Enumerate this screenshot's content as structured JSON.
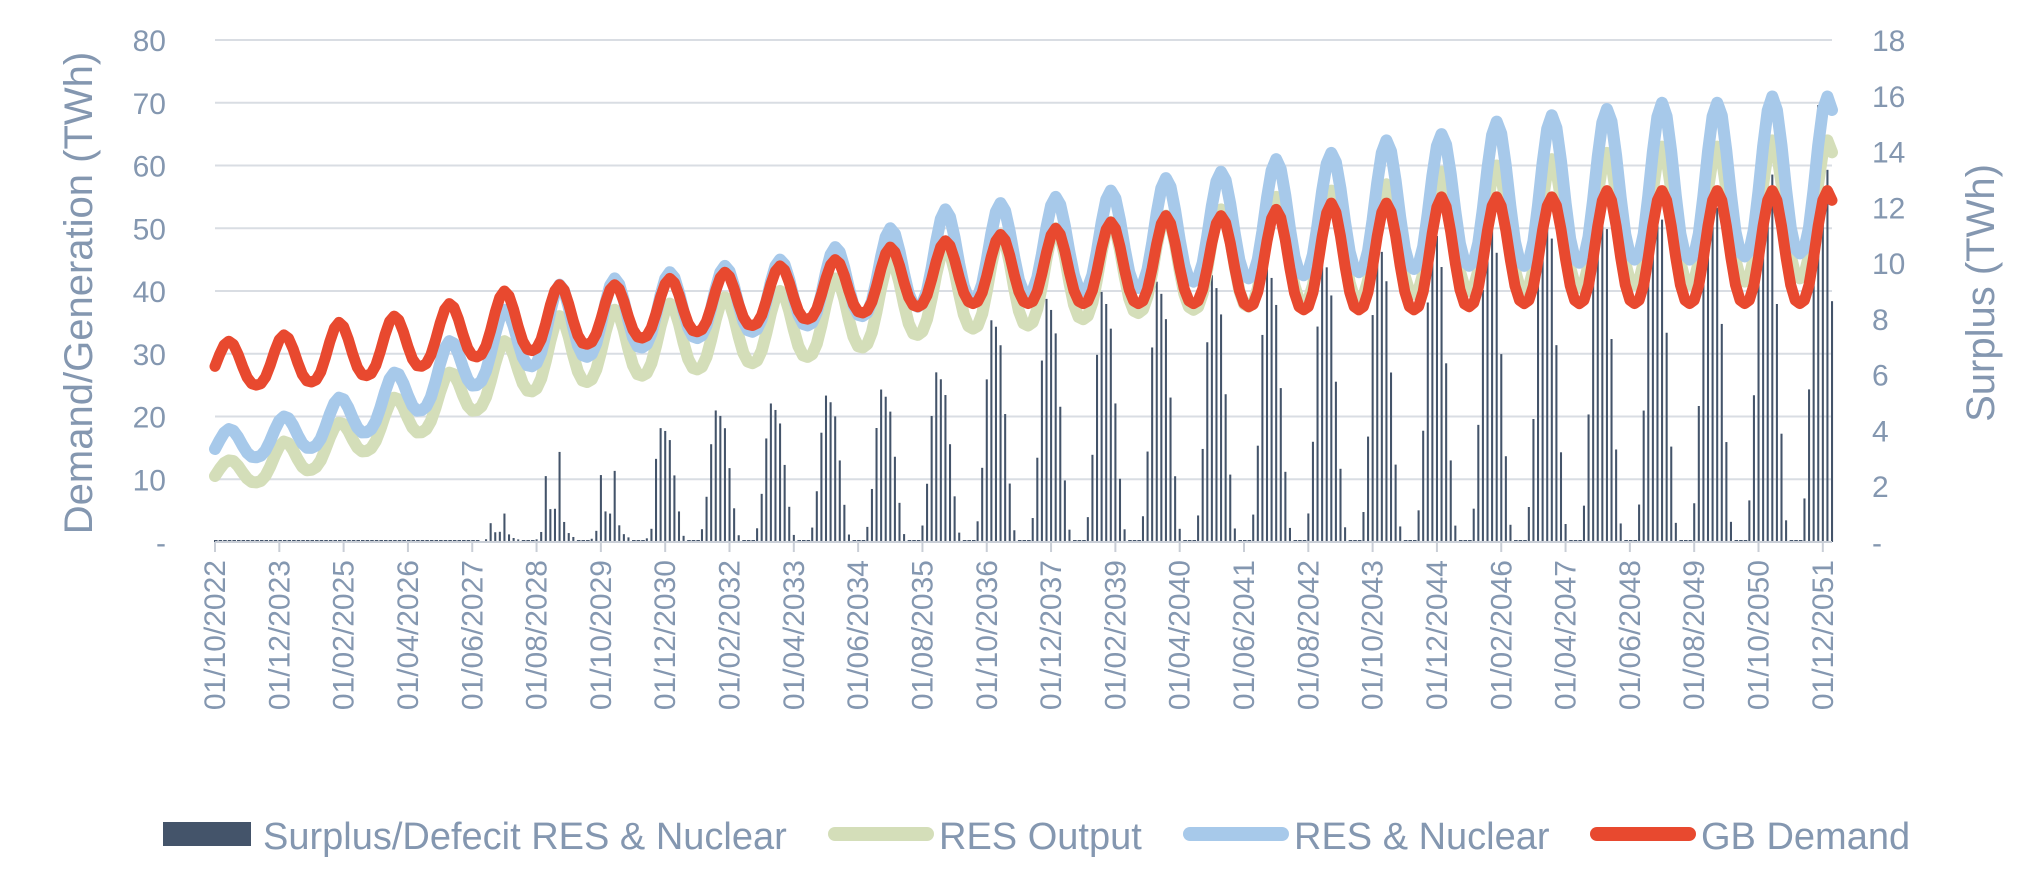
{
  "chart_data": {
    "type": "line",
    "title": "",
    "y_left": {
      "label": "Demand/Generation (TWh)",
      "range": [
        0,
        80
      ],
      "ticks": [
        "-",
        "10",
        "20",
        "30",
        "40",
        "50",
        "60",
        "70",
        "80"
      ]
    },
    "y_right": {
      "label": "Surplus (TWh)",
      "range": [
        0,
        18
      ],
      "ticks": [
        "-",
        "2",
        "4",
        "6",
        "8",
        "10",
        "12",
        "14",
        "16",
        "18"
      ]
    },
    "x_tick_labels": [
      "01/10/2022",
      "01/12/2023",
      "01/02/2025",
      "01/04/2026",
      "01/06/2027",
      "01/08/2028",
      "01/10/2029",
      "01/12/2030",
      "01/02/2032",
      "01/04/2033",
      "01/06/2034",
      "01/08/2035",
      "01/10/2036",
      "01/12/2037",
      "01/02/2039",
      "01/04/2040",
      "01/06/2041",
      "01/08/2042",
      "01/10/2043",
      "01/12/2044",
      "01/02/2046",
      "01/04/2047",
      "01/06/2048",
      "01/08/2049",
      "01/10/2050",
      "01/12/2051"
    ],
    "x_range": [
      "2022-10",
      "2052-02"
    ],
    "grid": true,
    "legend_position": "bottom",
    "series": [
      {
        "name": "GB Demand",
        "axis": "left",
        "style": "line",
        "color": "#e8492f",
        "winter_peak_by_year": [
          [
            2022,
            32
          ],
          [
            2023,
            32
          ],
          [
            2024,
            33
          ],
          [
            2025,
            35
          ],
          [
            2026,
            36
          ],
          [
            2027,
            38
          ],
          [
            2028,
            40
          ],
          [
            2029,
            41
          ],
          [
            2030,
            41
          ],
          [
            2031,
            42
          ],
          [
            2032,
            43
          ],
          [
            2033,
            44
          ],
          [
            2034,
            45
          ],
          [
            2035,
            47
          ],
          [
            2036,
            48
          ],
          [
            2037,
            49
          ],
          [
            2038,
            50
          ],
          [
            2039,
            51
          ],
          [
            2040,
            52
          ],
          [
            2041,
            52
          ],
          [
            2042,
            53
          ],
          [
            2043,
            54
          ],
          [
            2044,
            54
          ],
          [
            2045,
            55
          ],
          [
            2046,
            55
          ],
          [
            2047,
            55
          ],
          [
            2048,
            56
          ],
          [
            2049,
            56
          ],
          [
            2050,
            56
          ],
          [
            2051,
            56
          ],
          [
            2052,
            56
          ]
        ],
        "summer_trough_by_year": [
          [
            2022,
            26
          ],
          [
            2023,
            25
          ],
          [
            2024,
            25
          ],
          [
            2025,
            26
          ],
          [
            2026,
            27
          ],
          [
            2027,
            29
          ],
          [
            2028,
            30
          ],
          [
            2029,
            31
          ],
          [
            2030,
            32
          ],
          [
            2031,
            33
          ],
          [
            2032,
            34
          ],
          [
            2033,
            35
          ],
          [
            2034,
            36
          ],
          [
            2035,
            37
          ],
          [
            2036,
            38
          ],
          [
            2037,
            38
          ],
          [
            2038,
            38
          ],
          [
            2039,
            38
          ],
          [
            2040,
            38
          ],
          [
            2041,
            38
          ],
          [
            2042,
            37
          ],
          [
            2043,
            37
          ],
          [
            2044,
            37
          ],
          [
            2045,
            37
          ],
          [
            2046,
            38
          ],
          [
            2047,
            38
          ],
          [
            2048,
            38
          ],
          [
            2049,
            38
          ],
          [
            2050,
            38
          ],
          [
            2051,
            38
          ],
          [
            2052,
            38
          ]
        ]
      },
      {
        "name": "RES & Nuclear",
        "axis": "left",
        "style": "line",
        "color": "#a7c9ea",
        "winter_peak_by_year": [
          [
            2022,
            16
          ],
          [
            2023,
            18
          ],
          [
            2024,
            20
          ],
          [
            2025,
            23
          ],
          [
            2026,
            27
          ],
          [
            2027,
            32
          ],
          [
            2028,
            37
          ],
          [
            2029,
            41
          ],
          [
            2030,
            42
          ],
          [
            2031,
            43
          ],
          [
            2032,
            44
          ],
          [
            2033,
            45
          ],
          [
            2034,
            47
          ],
          [
            2035,
            50
          ],
          [
            2036,
            53
          ],
          [
            2037,
            54
          ],
          [
            2038,
            55
          ],
          [
            2039,
            56
          ],
          [
            2040,
            58
          ],
          [
            2041,
            59
          ],
          [
            2042,
            61
          ],
          [
            2043,
            62
          ],
          [
            2044,
            64
          ],
          [
            2045,
            65
          ],
          [
            2046,
            67
          ],
          [
            2047,
            68
          ],
          [
            2048,
            69
          ],
          [
            2049,
            70
          ],
          [
            2050,
            70
          ],
          [
            2051,
            71
          ],
          [
            2052,
            71
          ]
        ],
        "summer_trough_by_year": [
          [
            2022,
            13
          ],
          [
            2023,
            13
          ],
          [
            2024,
            14
          ],
          [
            2025,
            16
          ],
          [
            2026,
            19
          ],
          [
            2027,
            23
          ],
          [
            2028,
            27
          ],
          [
            2029,
            29
          ],
          [
            2030,
            30
          ],
          [
            2031,
            32
          ],
          [
            2032,
            33
          ],
          [
            2033,
            34
          ],
          [
            2034,
            35
          ],
          [
            2035,
            37
          ],
          [
            2036,
            38
          ],
          [
            2037,
            39
          ],
          [
            2038,
            40
          ],
          [
            2039,
            40
          ],
          [
            2040,
            41
          ],
          [
            2041,
            42
          ],
          [
            2042,
            42
          ],
          [
            2043,
            43
          ],
          [
            2044,
            43
          ],
          [
            2045,
            44
          ],
          [
            2046,
            44
          ],
          [
            2047,
            44
          ],
          [
            2048,
            45
          ],
          [
            2049,
            45
          ],
          [
            2050,
            45
          ],
          [
            2051,
            46
          ],
          [
            2052,
            46
          ]
        ]
      },
      {
        "name": "RES Output",
        "axis": "left",
        "style": "line",
        "color": "#d4deb9",
        "winter_peak_by_year": [
          [
            2022,
            12
          ],
          [
            2023,
            13
          ],
          [
            2024,
            16
          ],
          [
            2025,
            19
          ],
          [
            2026,
            23
          ],
          [
            2027,
            27
          ],
          [
            2028,
            32
          ],
          [
            2029,
            36
          ],
          [
            2030,
            37
          ],
          [
            2031,
            38
          ],
          [
            2032,
            39
          ],
          [
            2033,
            40
          ],
          [
            2034,
            42
          ],
          [
            2035,
            45
          ],
          [
            2036,
            47
          ],
          [
            2037,
            49
          ],
          [
            2038,
            50
          ],
          [
            2039,
            51
          ],
          [
            2040,
            52
          ],
          [
            2041,
            53
          ],
          [
            2042,
            55
          ],
          [
            2043,
            56
          ],
          [
            2044,
            57
          ],
          [
            2045,
            59
          ],
          [
            2046,
            60
          ],
          [
            2047,
            61
          ],
          [
            2048,
            62
          ],
          [
            2049,
            63
          ],
          [
            2050,
            63
          ],
          [
            2051,
            64
          ],
          [
            2052,
            64
          ]
        ],
        "summer_trough_by_year": [
          [
            2022,
            9
          ],
          [
            2023,
            9
          ],
          [
            2024,
            10
          ],
          [
            2025,
            13
          ],
          [
            2026,
            16
          ],
          [
            2027,
            19
          ],
          [
            2028,
            23
          ],
          [
            2029,
            25
          ],
          [
            2030,
            26
          ],
          [
            2031,
            27
          ],
          [
            2032,
            28
          ],
          [
            2033,
            29
          ],
          [
            2034,
            30
          ],
          [
            2035,
            32
          ],
          [
            2036,
            34
          ],
          [
            2037,
            34
          ],
          [
            2038,
            35
          ],
          [
            2039,
            36
          ],
          [
            2040,
            37
          ],
          [
            2041,
            37
          ],
          [
            2042,
            38
          ],
          [
            2043,
            38
          ],
          [
            2044,
            39
          ],
          [
            2045,
            40
          ],
          [
            2046,
            40
          ],
          [
            2047,
            40
          ],
          [
            2048,
            41
          ],
          [
            2049,
            41
          ],
          [
            2050,
            41
          ],
          [
            2051,
            42
          ],
          [
            2052,
            42
          ]
        ]
      },
      {
        "name": "Surplus/Defecit RES & Nuclear",
        "axis": "right",
        "style": "bar",
        "color": "#44546a",
        "max_surplus_by_year": [
          [
            2022,
            0
          ],
          [
            2023,
            0
          ],
          [
            2024,
            0
          ],
          [
            2025,
            0
          ],
          [
            2026,
            0
          ],
          [
            2027,
            0
          ],
          [
            2028,
            1.2
          ],
          [
            2029,
            3.8
          ],
          [
            2030,
            3.0
          ],
          [
            2031,
            4.3
          ],
          [
            2032,
            4.8
          ],
          [
            2033,
            5.0
          ],
          [
            2034,
            5.3
          ],
          [
            2035,
            5.5
          ],
          [
            2036,
            6.2
          ],
          [
            2037,
            8.3
          ],
          [
            2038,
            8.8
          ],
          [
            2039,
            9.0
          ],
          [
            2040,
            9.4
          ],
          [
            2041,
            9.6
          ],
          [
            2042,
            10.0
          ],
          [
            2043,
            10.4
          ],
          [
            2044,
            11.0
          ],
          [
            2045,
            11.6
          ],
          [
            2046,
            12.2
          ],
          [
            2047,
            12.8
          ],
          [
            2048,
            13.2
          ],
          [
            2049,
            13.6
          ],
          [
            2050,
            14.1
          ],
          [
            2051,
            15.5
          ],
          [
            2052,
            15.7
          ]
        ]
      }
    ]
  },
  "legend": {
    "items": [
      {
        "label": "Surplus/Defecit RES & Nuclear",
        "color": "#44546a",
        "shape": "box"
      },
      {
        "label": "RES Output",
        "color": "#d4deb9",
        "shape": "line"
      },
      {
        "label": "RES & Nuclear",
        "color": "#a7c9ea",
        "shape": "line"
      },
      {
        "label": "GB Demand",
        "color": "#e8492f",
        "shape": "line"
      }
    ]
  }
}
